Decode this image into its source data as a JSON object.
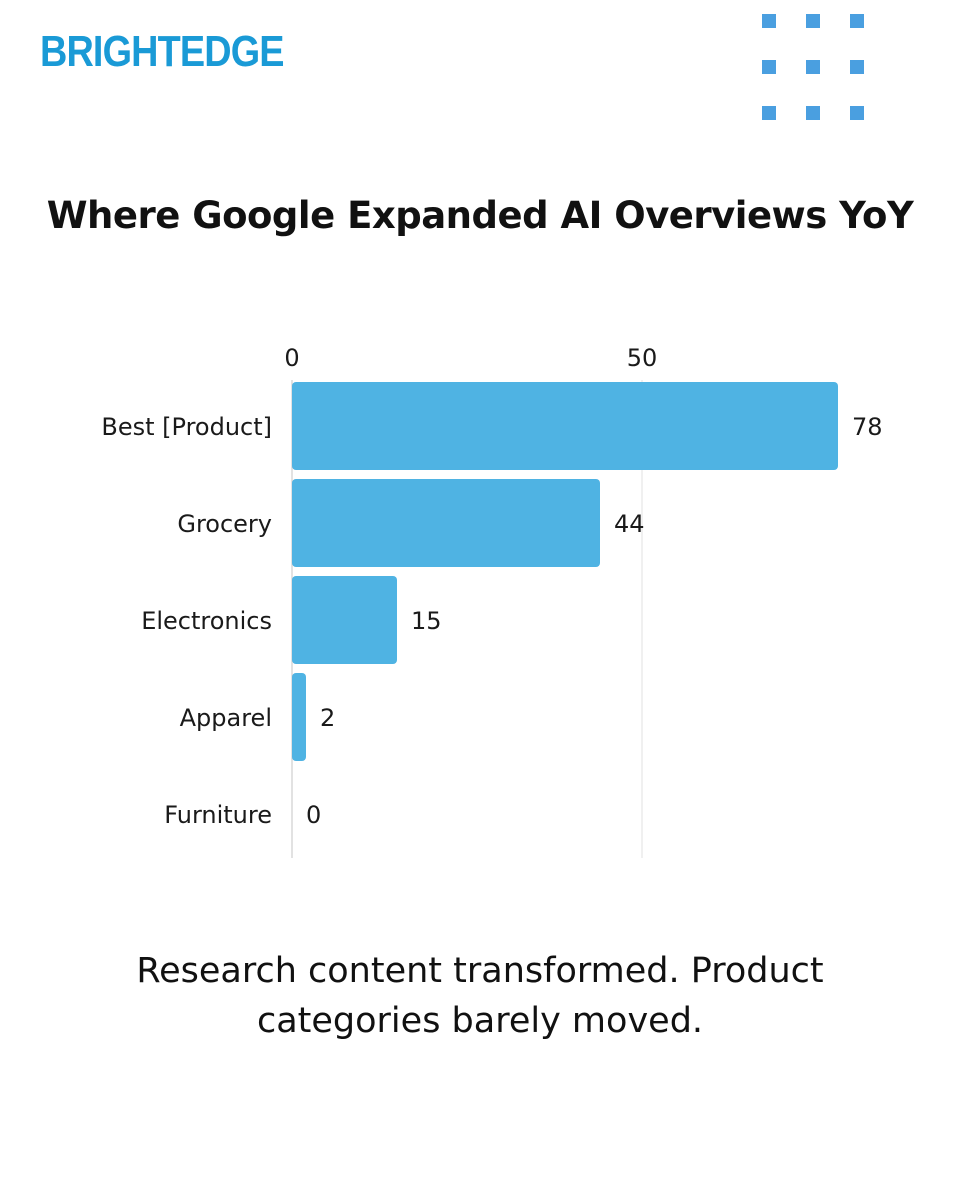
{
  "brand": {
    "logo_text": "BRIGHTEDGE",
    "logo_color": "#1a9ad6",
    "decoration_color": "#4a9fe0"
  },
  "chart_data": {
    "type": "bar",
    "orientation": "horizontal",
    "title": "Where Google Expanded AI Overviews YoY",
    "categories": [
      "Best [Product]",
      "Grocery",
      "Electronics",
      "Apparel",
      "Furniture"
    ],
    "values": [
      78,
      44,
      15,
      2,
      0
    ],
    "xlim": [
      0,
      80
    ],
    "x_ticks": [
      0,
      50
    ],
    "x_axis_position": "top",
    "grid": true,
    "data_labels": true,
    "bar_color": "#4fb3e3",
    "xlabel": "",
    "ylabel": ""
  },
  "caption": {
    "line1": "Research content transformed. Product",
    "line2": "categories barely moved."
  }
}
